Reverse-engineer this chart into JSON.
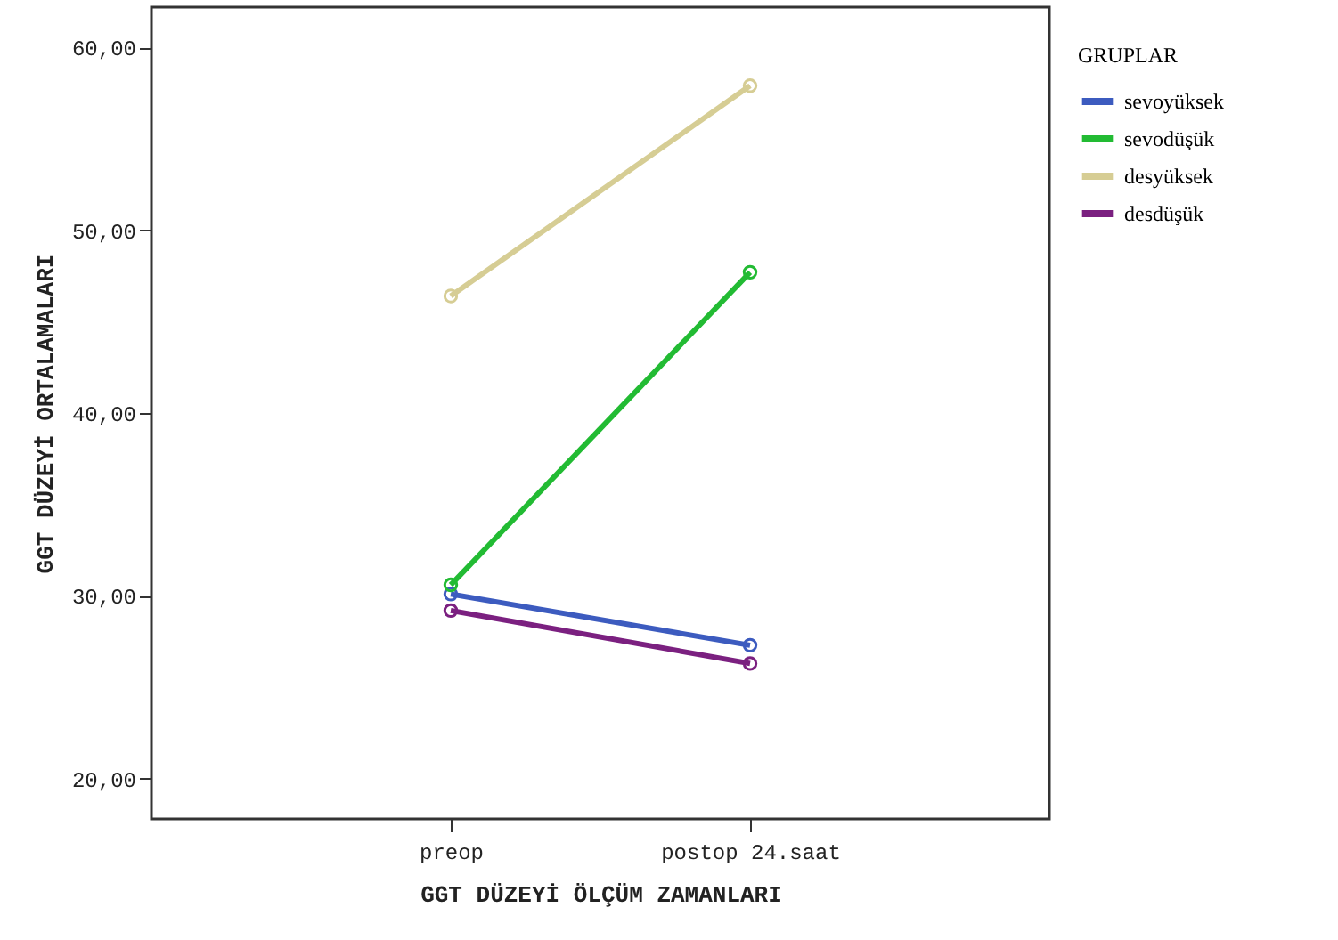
{
  "chart_data": {
    "type": "line",
    "xlabel": "GGT DÜZEYİ ÖLÇÜM ZAMANLARI",
    "ylabel": "GGT DÜZEYİ ORTALAMALARI",
    "legend_title": "GRUPLAR",
    "categories": [
      "preop",
      "postop 24.saat"
    ],
    "series": [
      {
        "name": "sevoyüksek",
        "color": "#3c5bbf",
        "values": [
          30.1,
          27.3
        ]
      },
      {
        "name": "sevodüşük",
        "color": "#22bb33",
        "values": [
          30.6,
          47.7
        ]
      },
      {
        "name": "desyüksek",
        "color": "#d6cd94",
        "values": [
          46.4,
          57.9
        ]
      },
      {
        "name": "desdüşük",
        "color": "#7b2080",
        "values": [
          29.2,
          26.3
        ]
      }
    ],
    "ylim": [
      17.8,
      62.2
    ],
    "yticks": [
      {
        "value": 20,
        "label": "20,00"
      },
      {
        "value": 30,
        "label": "30,00"
      },
      {
        "value": 40,
        "label": "40,00"
      },
      {
        "value": 50,
        "label": "50,00"
      },
      {
        "value": 60,
        "label": "60,00"
      }
    ],
    "grid": false,
    "legend": "top right",
    "marker": "circle",
    "line_style": "solid"
  }
}
